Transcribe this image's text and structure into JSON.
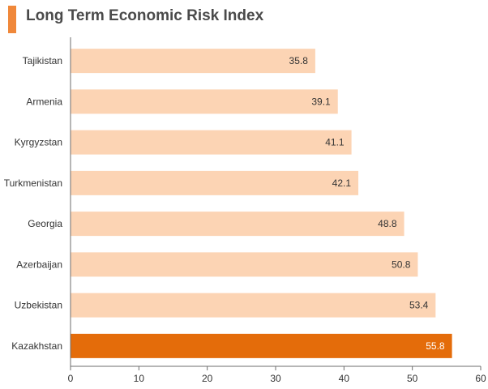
{
  "title": "Long Term Economic Risk Index",
  "colors": {
    "accent": "#f0883a",
    "bar": "#fcd4b4",
    "highlight": "#e46c0a",
    "axis": "#6e6e6e",
    "text": "#333333"
  },
  "chart_data": {
    "type": "bar",
    "orientation": "horizontal",
    "title": "Long Term Economic Risk Index",
    "categories": [
      "Tajikistan",
      "Armenia",
      "Kyrgyzstan",
      "Turkmenistan",
      "Georgia",
      "Azerbaijan",
      "Uzbekistan",
      "Kazakhstan"
    ],
    "values": [
      35.8,
      39.1,
      41.1,
      42.1,
      48.8,
      50.8,
      53.4,
      55.8
    ],
    "value_labels": [
      "35.8",
      "39.1",
      "41.1",
      "42.1",
      "48.8",
      "50.8",
      "53.4",
      "55.8"
    ],
    "highlight_category": "Kazakhstan",
    "xlim": [
      0,
      60
    ],
    "x_ticks": [
      "0",
      "10",
      "20",
      "30",
      "40",
      "50",
      "60"
    ],
    "grid": false,
    "legend": "none",
    "xlabel": "",
    "ylabel": ""
  }
}
